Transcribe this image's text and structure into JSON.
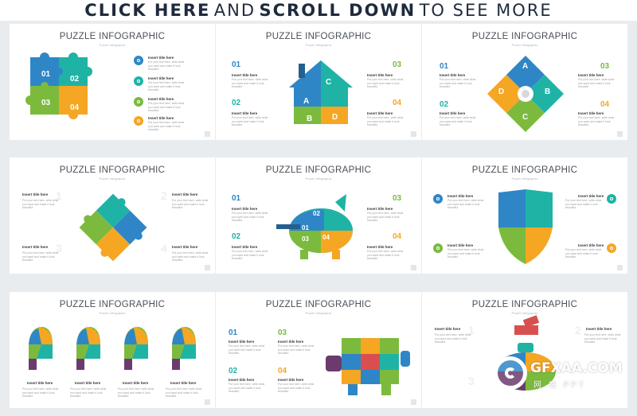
{
  "banner": {
    "bold1": "CLICK HERE",
    "light1": "AND",
    "bold2": "SCROLL DOWN",
    "light2": "TO SEE MORE"
  },
  "colors": {
    "blue": "#2f86c6",
    "teal": "#1fb3a6",
    "green": "#7cba3e",
    "orange": "#f5a623",
    "purple": "#6b3b6e",
    "red": "#d94f4f"
  },
  "card_title": "PUZZLE INFOGRAPHIC",
  "card_subtitle": "Puzzle Infographic",
  "item_title": "Insert title here",
  "item_text": "Put your text here, write what you want and make it look beautiful",
  "numbers": [
    "01",
    "02",
    "03",
    "04"
  ],
  "letters": [
    "A",
    "B",
    "C",
    "D"
  ],
  "ghost_digits": [
    "1",
    "2",
    "3",
    "4"
  ],
  "watermark": {
    "line1": "GFXAA.COM",
    "line2": "网 站 PPT"
  }
}
